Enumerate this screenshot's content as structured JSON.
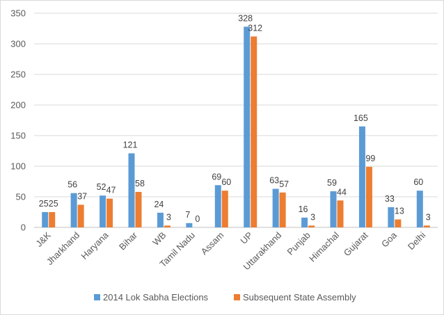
{
  "chart_data": {
    "type": "bar",
    "title": "",
    "xlabel": "",
    "ylabel": "",
    "ylim": [
      0,
      350
    ],
    "yticks": [
      0,
      50,
      100,
      150,
      200,
      250,
      300,
      350
    ],
    "grid": true,
    "legend_position": "bottom",
    "categories": [
      "J&K",
      "Jharkhand",
      "Haryana",
      "Bihar",
      "WB",
      "Tamil Nadu",
      "Assam",
      "UP",
      "Uttarakhand",
      "Punjab",
      "Himachal",
      "Gujarat",
      "Goa",
      "Delhi"
    ],
    "series": [
      {
        "name": "2014 Lok Sabha Elections",
        "color": "#5b9bd5",
        "values": [
          25,
          56,
          52,
          121,
          24,
          7,
          69,
          328,
          63,
          16,
          59,
          165,
          33,
          60
        ]
      },
      {
        "name": "Subsequent State Assembly",
        "color": "#ed7d31",
        "values": [
          25,
          37,
          47,
          58,
          3,
          0,
          60,
          312,
          57,
          3,
          44,
          99,
          13,
          3
        ]
      }
    ]
  }
}
